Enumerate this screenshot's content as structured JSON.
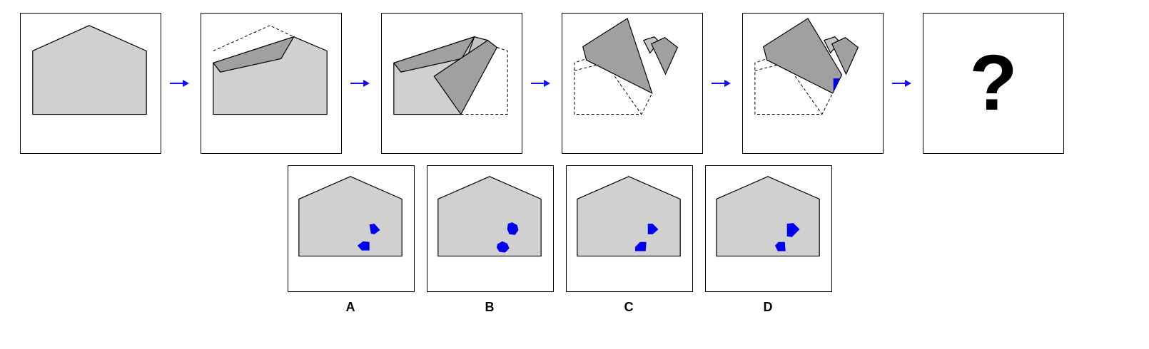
{
  "question": {
    "mark": "?"
  },
  "options": [
    {
      "label": "A"
    },
    {
      "label": "B"
    },
    {
      "label": "C"
    },
    {
      "label": "D"
    }
  ],
  "colors": {
    "paper": "#d0d0d0",
    "flap": "#a0a0a0",
    "hole": "#0000ee",
    "arrow": "#1010ff",
    "outline": "#000000"
  }
}
